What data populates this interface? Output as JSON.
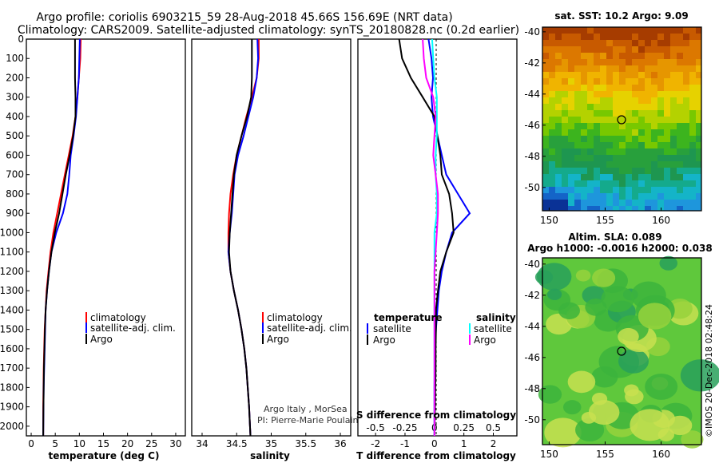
{
  "title": {
    "line1": "Argo profile: coriolis 6903215_59 28-Aug-2018 45.66S 156.69E (NRT data)",
    "line2": "Climatology: CARS2009. Satellite-adjusted climatology: synTS_20180828.nc (0.2d earlier)"
  },
  "y_ticks": [
    "0",
    "100",
    "200",
    "300",
    "400",
    "500",
    "600",
    "700",
    "800",
    "900",
    "1000",
    "1100",
    "1200",
    "1300",
    "1400",
    "1500",
    "1600",
    "1700",
    "1800",
    "1900",
    "2000"
  ],
  "colors": {
    "climatology": "#ff0000",
    "satellite": "#0000ff",
    "argo": "#000000",
    "salinity_sat": "#00ffff",
    "salinity_argo": "#ff00ff"
  },
  "credits": {
    "line1": "Argo Italy , MorSea",
    "line2": "PI: Pierre-Marie Poulain"
  },
  "map_sst": {
    "title": "sat. SST: 10.2 Argo: 9.09",
    "x_ticks": [
      "150",
      "155",
      "160"
    ],
    "y_ticks": [
      "-40",
      "-42",
      "-44",
      "-46",
      "-48",
      "-50"
    ]
  },
  "map_sla": {
    "title1": "Altim. SLA: 0.089",
    "title2": "Argo h1000: -0.0016 h2000: 0.038",
    "x_ticks": [
      "150",
      "155",
      "160"
    ],
    "y_ticks": [
      "-40",
      "-42",
      "-44",
      "-46",
      "-48",
      "-50"
    ]
  },
  "watermark": "©IMOS 20-Dec-2018 02:48:24",
  "chart_data": [
    {
      "type": "line",
      "xlabel": "temperature (deg C)",
      "ylabel": "",
      "xlim": [
        -1,
        32
      ],
      "ylim": [
        2050,
        0
      ],
      "x_ticks": [
        "0",
        "5",
        "10",
        "15",
        "20",
        "25",
        "30"
      ],
      "legend": [
        "climatology",
        "satellite-adj. clim.",
        "Argo"
      ],
      "series": [
        {
          "name": "climatology",
          "color": "#ff0000",
          "x": [
            10.3,
            10.2,
            9.9,
            9.6,
            9.2,
            8.6,
            7.8,
            7.0,
            6.2,
            5.4,
            4.6,
            4.0,
            3.6,
            3.2,
            3.0,
            2.8,
            2.7,
            2.6,
            2.55,
            2.5,
            2.5
          ],
          "y": [
            0,
            100,
            200,
            300,
            400,
            500,
            600,
            700,
            800,
            900,
            1000,
            1100,
            1200,
            1300,
            1400,
            1500,
            1600,
            1700,
            1800,
            1900,
            2050
          ]
        },
        {
          "name": "satellite-adj. clim.",
          "color": "#0000ff",
          "x": [
            10.1,
            10.0,
            9.9,
            9.6,
            9.3,
            8.8,
            8.2,
            7.9,
            7.5,
            6.6,
            5.2,
            4.2,
            3.7,
            3.3,
            3.0,
            2.9,
            2.8,
            2.7,
            2.6,
            2.55,
            2.5
          ],
          "y": [
            0,
            100,
            200,
            300,
            400,
            500,
            600,
            700,
            800,
            900,
            1000,
            1100,
            1200,
            1300,
            1400,
            1500,
            1600,
            1700,
            1800,
            1900,
            2050
          ]
        },
        {
          "name": "Argo",
          "color": "#000000",
          "x": [
            9.1,
            9.1,
            9.1,
            9.2,
            9.2,
            8.7,
            8.0,
            7.2,
            6.5,
            5.8,
            4.9,
            4.2,
            3.7,
            3.3,
            3.0,
            2.85,
            2.75,
            2.65,
            2.6,
            2.55,
            2.5
          ],
          "y": [
            0,
            100,
            200,
            300,
            400,
            500,
            600,
            700,
            800,
            900,
            1000,
            1100,
            1200,
            1300,
            1400,
            1500,
            1600,
            1700,
            1800,
            1900,
            2050
          ]
        }
      ]
    },
    {
      "type": "line",
      "xlabel": "salinity",
      "ylabel": "",
      "xlim": [
        33.85,
        36.15
      ],
      "ylim": [
        2050,
        0
      ],
      "x_ticks": [
        "34",
        "34.5",
        "35",
        "35.5",
        "36"
      ],
      "legend": [
        "climatology",
        "satellite-adj. clim.",
        "Argo"
      ],
      "series": [
        {
          "name": "climatology",
          "color": "#ff0000",
          "x": [
            34.82,
            34.82,
            34.79,
            34.72,
            34.64,
            34.57,
            34.5,
            34.45,
            34.41,
            34.39,
            34.38,
            34.38,
            34.41,
            34.46,
            34.52,
            34.57,
            34.61,
            34.64,
            34.66,
            34.68,
            34.7
          ],
          "y": [
            0,
            100,
            200,
            300,
            400,
            500,
            600,
            700,
            800,
            900,
            1000,
            1100,
            1200,
            1300,
            1400,
            1500,
            1600,
            1700,
            1800,
            1900,
            2050
          ]
        },
        {
          "name": "satellite-adj. clim.",
          "color": "#0000ff",
          "x": [
            34.8,
            34.81,
            34.79,
            34.74,
            34.67,
            34.6,
            34.52,
            34.47,
            34.45,
            34.43,
            34.4,
            34.38,
            34.41,
            34.46,
            34.52,
            34.57,
            34.61,
            34.64,
            34.66,
            34.68,
            34.7
          ],
          "y": [
            0,
            100,
            200,
            300,
            400,
            500,
            600,
            700,
            800,
            900,
            1000,
            1100,
            1200,
            1300,
            1400,
            1500,
            1600,
            1700,
            1800,
            1900,
            2050
          ]
        },
        {
          "name": "Argo",
          "color": "#000000",
          "x": [
            34.72,
            34.72,
            34.72,
            34.71,
            34.65,
            34.57,
            34.5,
            34.46,
            34.44,
            34.42,
            34.4,
            34.39,
            34.41,
            34.46,
            34.52,
            34.57,
            34.61,
            34.64,
            34.66,
            34.68,
            34.7
          ],
          "y": [
            0,
            100,
            200,
            300,
            400,
            500,
            600,
            700,
            800,
            900,
            1000,
            1100,
            1200,
            1300,
            1400,
            1500,
            1600,
            1700,
            1800,
            1900,
            2050
          ]
        }
      ]
    },
    {
      "type": "line",
      "xlabel": "T difference from climatology",
      "ylabel": "",
      "xlim": [
        -2.6,
        2.8
      ],
      "ylim": [
        2050,
        0
      ],
      "x_ticks": [
        "-2",
        "-1",
        "0",
        "1",
        "2"
      ],
      "top_xlabel": "S difference from climatology",
      "top_x_ticks": [
        "-0.5",
        "-0.25",
        "0",
        "0.25",
        "0.5"
      ],
      "legend_temperature_title": "temperature",
      "legend_salinity_title": "salinity",
      "legend": [
        "satellite",
        "Argo",
        "satellite",
        "Argo"
      ],
      "series": [
        {
          "name": "satellite",
          "group": "temperature",
          "color": "#0000ff",
          "x": [
            -0.2,
            -0.1,
            -0.05,
            -0.1,
            -0.05,
            0.1,
            0.25,
            0.4,
            0.8,
            1.2,
            0.6,
            0.4,
            0.25,
            0.15,
            0.1,
            0.05,
            0.02,
            0.01,
            0.0,
            0.0,
            0.0
          ],
          "y": [
            0,
            100,
            200,
            300,
            400,
            500,
            600,
            700,
            800,
            900,
            1000,
            1100,
            1200,
            1300,
            1400,
            1500,
            1600,
            1700,
            1800,
            1900,
            2050
          ]
        },
        {
          "name": "Argo",
          "group": "temperature",
          "color": "#000000",
          "x": [
            -1.2,
            -1.1,
            -0.8,
            -0.4,
            0.0,
            0.1,
            0.2,
            0.25,
            0.5,
            0.6,
            0.65,
            0.4,
            0.2,
            0.12,
            0.05,
            0.05,
            0.04,
            0.04,
            0.03,
            0.02,
            0.0
          ],
          "y": [
            0,
            100,
            200,
            300,
            400,
            500,
            600,
            700,
            800,
            900,
            1000,
            1100,
            1200,
            1300,
            1400,
            1500,
            1600,
            1700,
            1800,
            1900,
            2050
          ]
        },
        {
          "name": "satellite",
          "group": "salinity",
          "color": "#00ffff",
          "x": [
            -0.02,
            -0.01,
            0.0,
            0.02,
            0.02,
            0.02,
            0.01,
            0.01,
            0.02,
            0.02,
            0.0,
            0.0,
            0.0,
            0.0,
            0.0,
            0.0,
            0.0,
            0.0,
            0.0,
            0.0,
            0.0
          ],
          "y": [
            0,
            100,
            200,
            300,
            400,
            500,
            600,
            700,
            800,
            900,
            1000,
            1100,
            1200,
            1300,
            1400,
            1500,
            1600,
            1700,
            1800,
            1900,
            2050
          ]
        },
        {
          "name": "Argo",
          "group": "salinity",
          "color": "#ff00ff",
          "x": [
            -0.1,
            -0.09,
            -0.07,
            -0.01,
            0.01,
            0.0,
            -0.01,
            0.01,
            0.03,
            0.03,
            0.02,
            0.01,
            0.0,
            0.0,
            0.0,
            0.0,
            0.0,
            0.0,
            0.0,
            0.0,
            0.0
          ],
          "y": [
            0,
            100,
            200,
            300,
            400,
            500,
            600,
            700,
            800,
            900,
            1000,
            1100,
            1200,
            1300,
            1400,
            1500,
            1600,
            1700,
            1800,
            1900,
            2050
          ]
        }
      ]
    }
  ]
}
